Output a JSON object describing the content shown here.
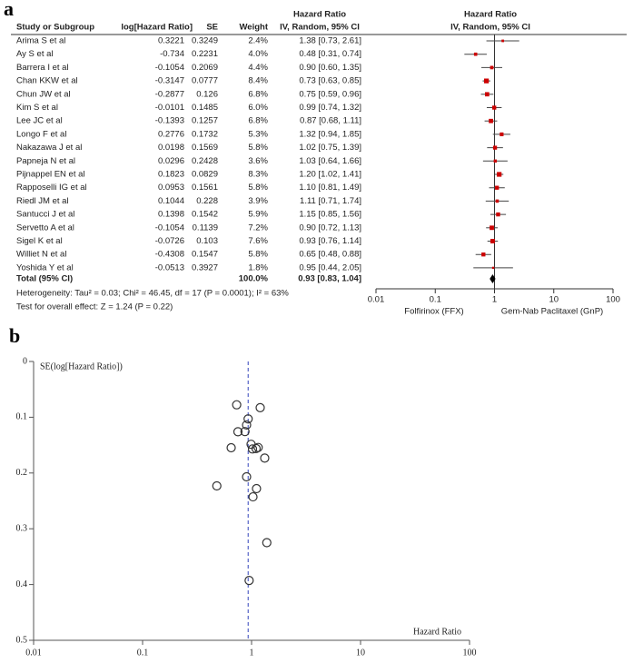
{
  "chart_data": [
    {
      "type": "forest",
      "panel": "a",
      "headers": {
        "study": "Study or Subgroup",
        "log_hr": "log[Hazard Ratio]",
        "se": "SE",
        "weight": "Weight",
        "hr_title": "Hazard Ratio",
        "hr_sub": "IV, Random, 95% CI",
        "plot_title": "Hazard Ratio",
        "plot_sub": "IV, Random, 95% CI"
      },
      "studies": [
        {
          "name": "Arima S et al",
          "log_hr": 0.3221,
          "se": 0.3249,
          "weight": 2.4,
          "weight_label": "2.4%",
          "hr": 1.38,
          "ci": [
            0.73,
            2.61
          ],
          "hr_label": "1.38 [0.73, 2.61]"
        },
        {
          "name": "Ay S et al",
          "log_hr": -0.734,
          "se": 0.2231,
          "weight": 4.0,
          "weight_label": "4.0%",
          "hr": 0.48,
          "ci": [
            0.31,
            0.74
          ],
          "hr_label": "0.48 [0.31, 0.74]"
        },
        {
          "name": "Barrera I et al",
          "log_hr": -0.1054,
          "se": 0.2069,
          "weight": 4.4,
          "weight_label": "4.4%",
          "hr": 0.9,
          "ci": [
            0.6,
            1.35
          ],
          "hr_label": "0.90 [0.60, 1.35]"
        },
        {
          "name": "Chan KKW et al",
          "log_hr": -0.3147,
          "se": 0.0777,
          "weight": 8.4,
          "weight_label": "8.4%",
          "hr": 0.73,
          "ci": [
            0.63,
            0.85
          ],
          "hr_label": "0.73 [0.63, 0.85]"
        },
        {
          "name": "Chun JW et al",
          "log_hr": -0.2877,
          "se": 0.126,
          "weight": 6.8,
          "weight_label": "6.8%",
          "hr": 0.75,
          "ci": [
            0.59,
            0.96
          ],
          "hr_label": "0.75 [0.59, 0.96]"
        },
        {
          "name": "Kim S et al",
          "log_hr": -0.0101,
          "se": 0.1485,
          "weight": 6.0,
          "weight_label": "6.0%",
          "hr": 0.99,
          "ci": [
            0.74,
            1.32
          ],
          "hr_label": "0.99 [0.74, 1.32]"
        },
        {
          "name": "Lee JC et al",
          "log_hr": -0.1393,
          "se": 0.1257,
          "weight": 6.8,
          "weight_label": "6.8%",
          "hr": 0.87,
          "ci": [
            0.68,
            1.11
          ],
          "hr_label": "0.87 [0.68, 1.11]"
        },
        {
          "name": "Longo F et al",
          "log_hr": 0.2776,
          "se": 0.1732,
          "weight": 5.3,
          "weight_label": "5.3%",
          "hr": 1.32,
          "ci": [
            0.94,
            1.85
          ],
          "hr_label": "1.32 [0.94, 1.85]"
        },
        {
          "name": "Nakazawa J et al",
          "log_hr": 0.0198,
          "se": 0.1569,
          "weight": 5.8,
          "weight_label": "5.8%",
          "hr": 1.02,
          "ci": [
            0.75,
            1.39
          ],
          "hr_label": "1.02 [0.75, 1.39]"
        },
        {
          "name": "Papneja N et al",
          "log_hr": 0.0296,
          "se": 0.2428,
          "weight": 3.6,
          "weight_label": "3.6%",
          "hr": 1.03,
          "ci": [
            0.64,
            1.66
          ],
          "hr_label": "1.03 [0.64, 1.66]"
        },
        {
          "name": "Pijnappel EN et al",
          "log_hr": 0.1823,
          "se": 0.0829,
          "weight": 8.3,
          "weight_label": "8.3%",
          "hr": 1.2,
          "ci": [
            1.02,
            1.41
          ],
          "hr_label": "1.20 [1.02, 1.41]"
        },
        {
          "name": "Rapposelli IG et al",
          "log_hr": 0.0953,
          "se": 0.1561,
          "weight": 5.8,
          "weight_label": "5.8%",
          "hr": 1.1,
          "ci": [
            0.81,
            1.49
          ],
          "hr_label": "1.10 [0.81, 1.49]"
        },
        {
          "name": "Riedl JM et al",
          "log_hr": 0.1044,
          "se": 0.228,
          "weight": 3.9,
          "weight_label": "3.9%",
          "hr": 1.11,
          "ci": [
            0.71,
            1.74
          ],
          "hr_label": "1.11 [0.71, 1.74]"
        },
        {
          "name": "Santucci J et al",
          "log_hr": 0.1398,
          "se": 0.1542,
          "weight": 5.9,
          "weight_label": "5.9%",
          "hr": 1.15,
          "ci": [
            0.85,
            1.56
          ],
          "hr_label": "1.15 [0.85, 1.56]"
        },
        {
          "name": "Servetto A et al",
          "log_hr": -0.1054,
          "se": 0.1139,
          "weight": 7.2,
          "weight_label": "7.2%",
          "hr": 0.9,
          "ci": [
            0.72,
            1.13
          ],
          "hr_label": "0.90 [0.72, 1.13]"
        },
        {
          "name": "Sigel K et al",
          "log_hr": -0.0726,
          "se": 0.103,
          "weight": 7.6,
          "weight_label": "7.6%",
          "hr": 0.93,
          "ci": [
            0.76,
            1.14
          ],
          "hr_label": "0.93 [0.76, 1.14]"
        },
        {
          "name": "Williet N et al",
          "log_hr": -0.4308,
          "se": 0.1547,
          "weight": 5.8,
          "weight_label": "5.8%",
          "hr": 0.65,
          "ci": [
            0.48,
            0.88
          ],
          "hr_label": "0.65 [0.48, 0.88]"
        },
        {
          "name": "Yoshida Y et al",
          "log_hr": -0.0513,
          "se": 0.3927,
          "weight": 1.8,
          "weight_label": "1.8%",
          "hr": 0.95,
          "ci": [
            0.44,
            2.05
          ],
          "hr_label": "0.95 [0.44, 2.05]"
        }
      ],
      "total": {
        "name": "Total (95% CI)",
        "weight": 100,
        "weight_label": "100.0%",
        "hr": 0.93,
        "ci": [
          0.83,
          1.04
        ],
        "hr_label": "0.93 [0.83, 1.04]"
      },
      "heterogeneity": "Heterogeneity: Tau² = 0.03; Chi² = 46.45, df = 17 (P = 0.0001); I² = 63%",
      "overall_effect": "Test for overall effect: Z = 1.24 (P = 0.22)",
      "x_scale": "log",
      "xlim": [
        0.01,
        100
      ],
      "xticks": [
        0.01,
        0.1,
        1,
        10,
        100
      ],
      "reference_line": 1,
      "xlabel_left": "Folfirinox (FFX)",
      "xlabel_right": "Gem-Nab Paclitaxel (GnP)",
      "marker_color": "#cc0000"
    },
    {
      "type": "funnel",
      "panel": "b",
      "ylabel": "SE(log[Hazard Ratio])",
      "xlabel": "Hazard Ratio",
      "x_scale": "log",
      "xlim": [
        0.01,
        100
      ],
      "xticks": [
        0.01,
        0.1,
        1,
        10,
        100
      ],
      "ylim": [
        0,
        0.5
      ],
      "yticks": [
        0,
        0.1,
        0.2,
        0.3,
        0.4,
        0.5
      ],
      "y_inverted": true,
      "line_color": "#3344bb"
    }
  ]
}
